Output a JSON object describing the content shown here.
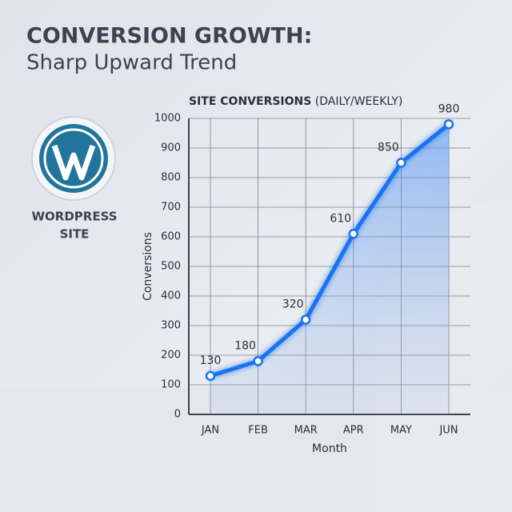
{
  "chart_data": {
    "type": "line",
    "title": "CONVERSION GROWTH:",
    "subtitle": "Sharp Upward Trend",
    "badge_label": [
      "WORDPRESS",
      "SITE"
    ],
    "chart_title": "SITE CONVERSIONS",
    "chart_title_note": "(DAILY/WEEKLY)",
    "x_label": "Month",
    "y_label": "Conversions",
    "categories": [
      "JAN",
      "FEB",
      "MAR",
      "APR",
      "MAY",
      "JUN"
    ],
    "values": [
      130,
      180,
      320,
      610,
      850,
      980
    ],
    "color": "#1a73f0",
    "ylim": [
      0,
      1000
    ],
    "yticks": [
      0,
      100,
      200,
      300,
      400,
      500,
      600,
      700,
      800,
      900,
      1000
    ],
    "grid": true
  }
}
